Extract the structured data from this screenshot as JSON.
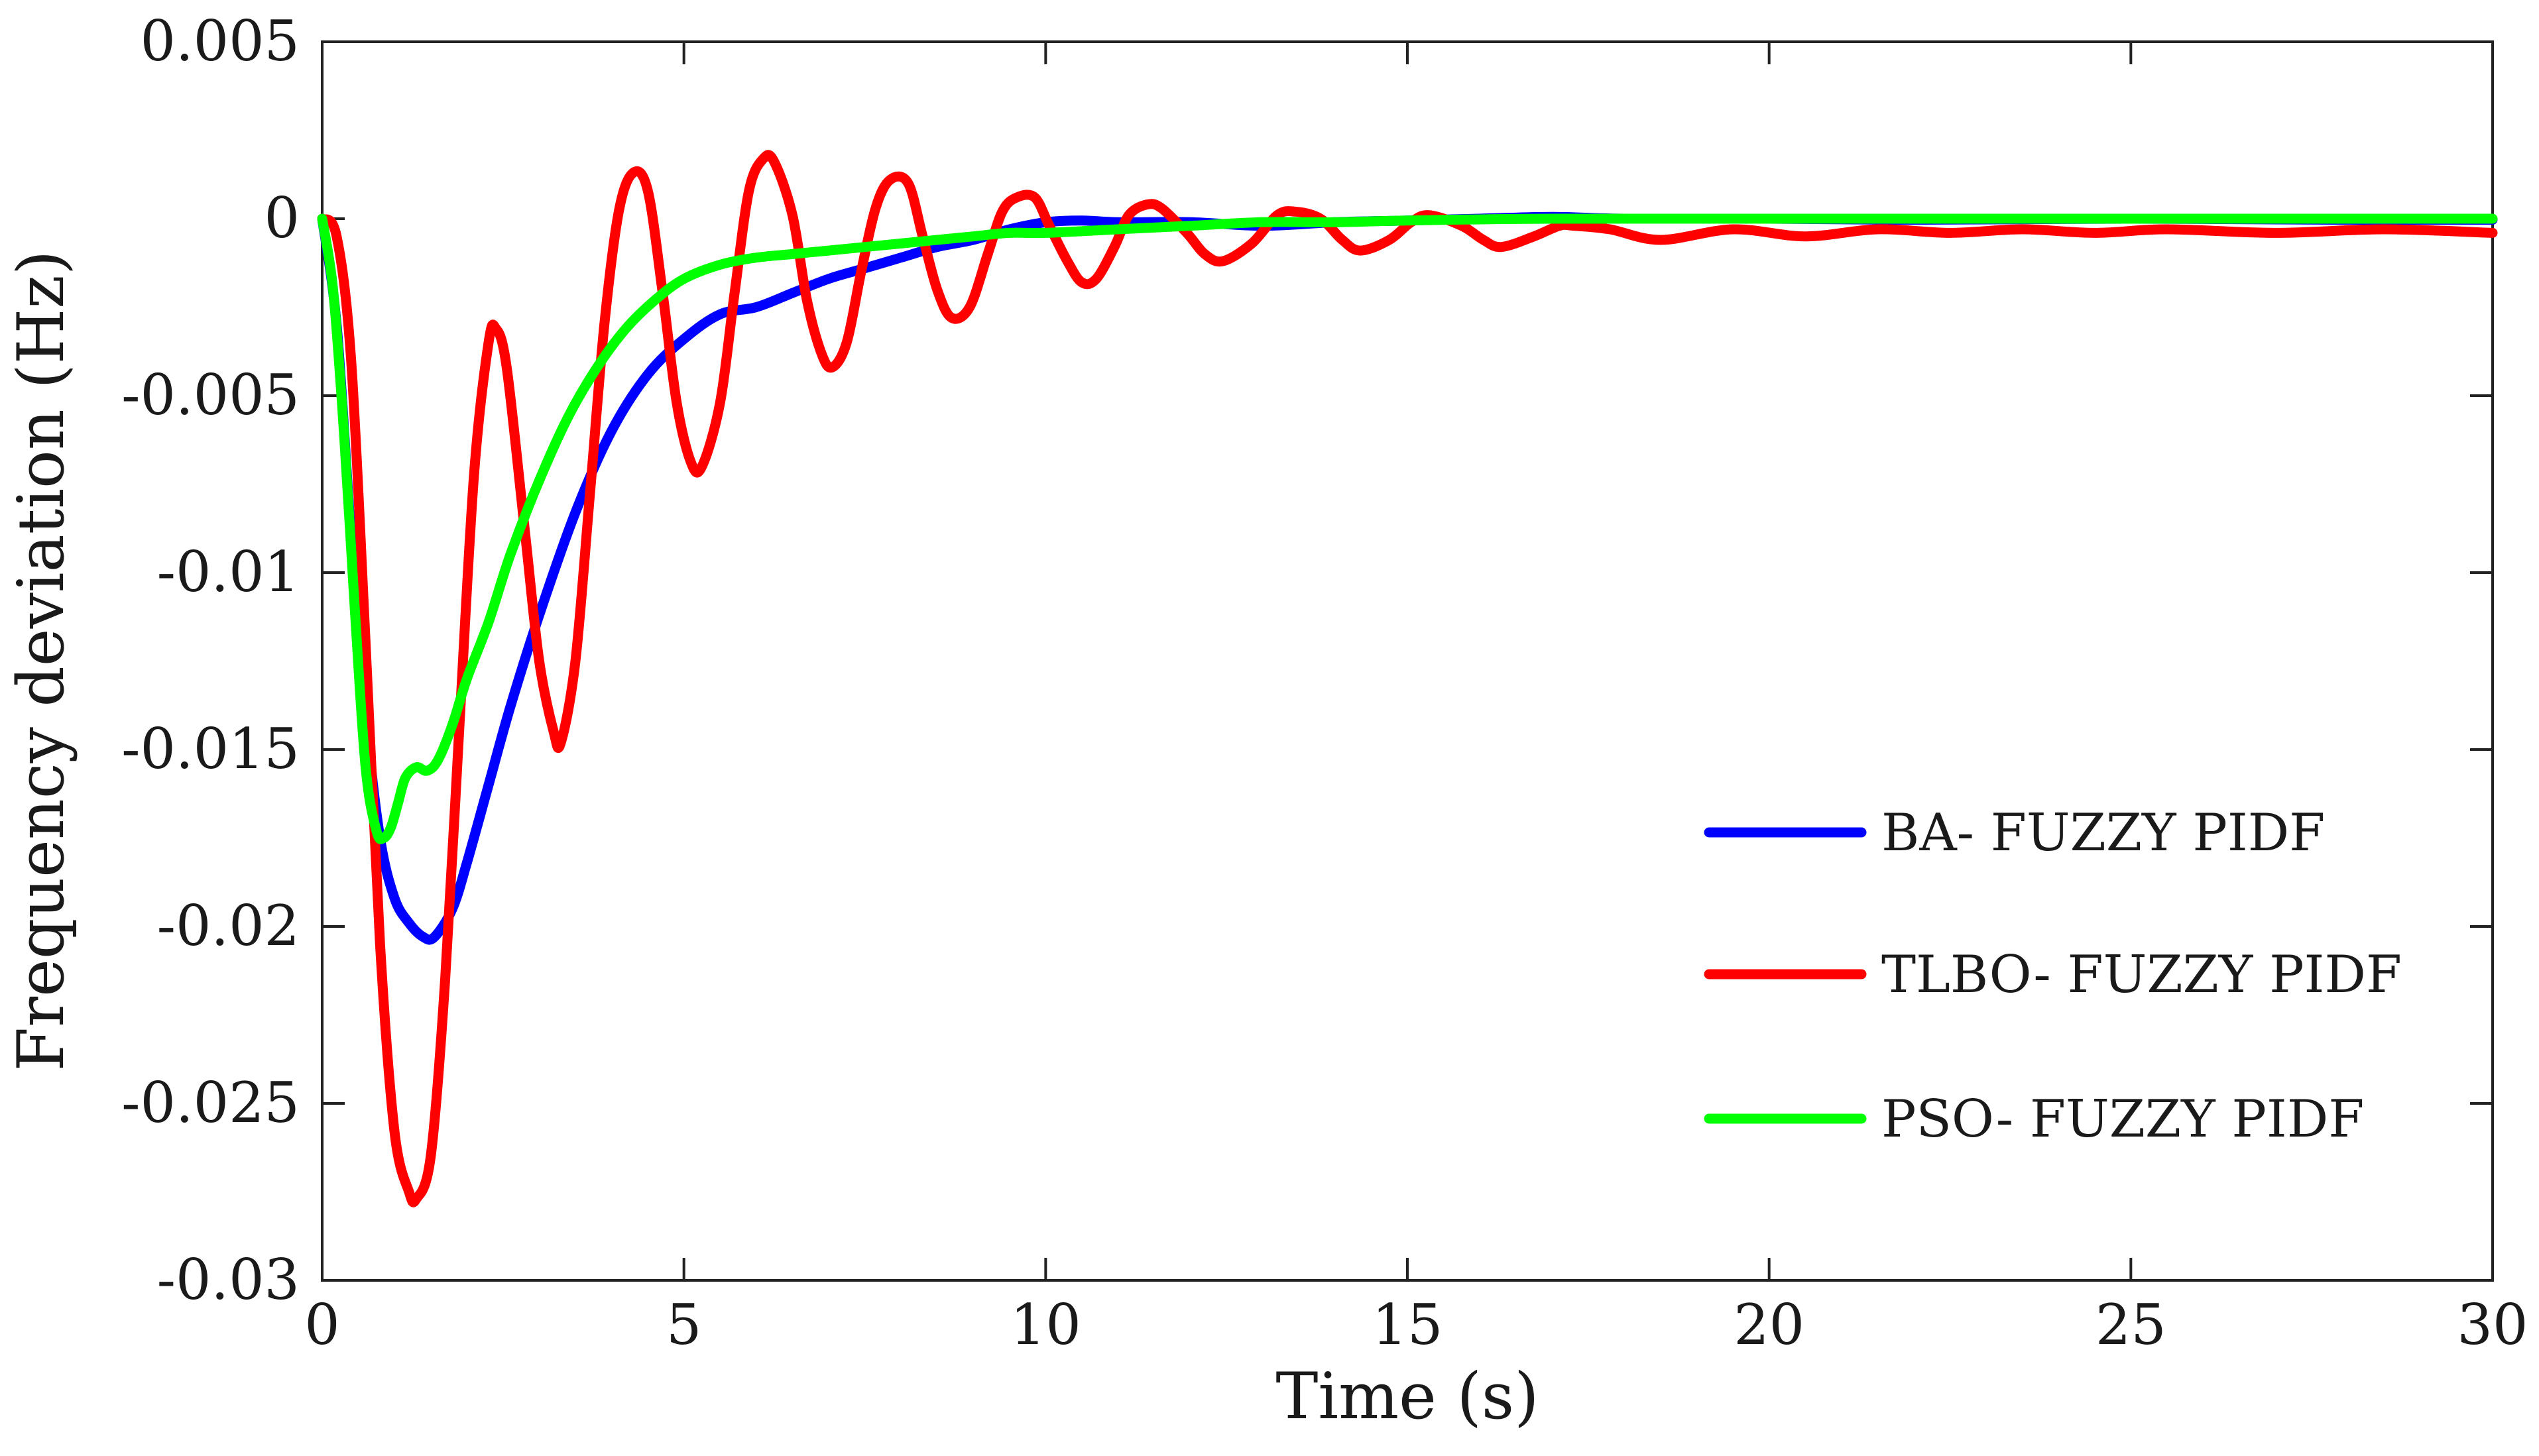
{
  "chart_data": {
    "type": "line",
    "title": "",
    "xlabel": "Time (s)",
    "ylabel": "Frequency deviation (Hz)",
    "xlim": [
      0,
      30
    ],
    "ylim": [
      -0.03,
      0.005
    ],
    "xticks": [
      0,
      5,
      10,
      15,
      20,
      25,
      30
    ],
    "xtick_labels": [
      "0",
      "5",
      "10",
      "15",
      "20",
      "25",
      "30"
    ],
    "yticks": [
      0.005,
      0,
      -0.005,
      -0.01,
      -0.015,
      -0.02,
      -0.025,
      -0.03
    ],
    "ytick_labels": [
      "0.005",
      "0",
      "-0.005",
      "-0.01",
      "-0.015",
      "-0.02",
      "-0.025",
      "-0.03"
    ],
    "grid": false,
    "legend_position": "center-right",
    "series": [
      {
        "name": "BA- FUZZY PIDF",
        "color": "#0000ff",
        "x": [
          0,
          0.2,
          0.4,
          0.6,
          0.8,
          1.0,
          1.2,
          1.4,
          1.55,
          1.8,
          2.0,
          2.3,
          2.6,
          3.0,
          3.5,
          4.0,
          4.5,
          5.0,
          5.5,
          6.0,
          6.5,
          7.0,
          7.5,
          8.0,
          8.5,
          9.0,
          9.5,
          10.0,
          10.5,
          11.0,
          12.0,
          13.0,
          14.0,
          15.0,
          16.0,
          17.0,
          18.0,
          20.0,
          22.0,
          25.0,
          28.0,
          30.0
        ],
        "y": [
          0,
          -0.003,
          -0.009,
          -0.014,
          -0.0175,
          -0.0192,
          -0.0199,
          -0.0203,
          -0.0203,
          -0.0195,
          -0.0182,
          -0.016,
          -0.0138,
          -0.0112,
          -0.0083,
          -0.006,
          -0.0044,
          -0.0034,
          -0.0027,
          -0.0025,
          -0.0021,
          -0.0017,
          -0.0014,
          -0.0011,
          -0.0008,
          -0.0006,
          -0.0003,
          -0.0001,
          -5e-05,
          -0.0001,
          -0.0001,
          -0.0002,
          -0.0001,
          -5e-05,
          0,
          5e-05,
          0,
          0,
          -3e-05,
          0,
          -3e-05,
          -3e-05
        ]
      },
      {
        "name": "TLBO- FUZZY PIDF",
        "color": "#ff0000",
        "x": [
          0,
          0.2,
          0.4,
          0.6,
          0.8,
          1.0,
          1.2,
          1.3,
          1.5,
          1.7,
          1.9,
          2.1,
          2.3,
          2.4,
          2.55,
          2.8,
          3.0,
          3.2,
          3.3,
          3.5,
          3.7,
          3.9,
          4.1,
          4.3,
          4.5,
          4.7,
          4.9,
          5.1,
          5.25,
          5.5,
          5.7,
          5.9,
          6.1,
          6.25,
          6.5,
          6.7,
          6.9,
          7.05,
          7.25,
          7.45,
          7.65,
          7.85,
          8.1,
          8.3,
          8.5,
          8.7,
          8.95,
          9.2,
          9.4,
          9.6,
          9.85,
          10.05,
          10.3,
          10.5,
          10.7,
          10.95,
          11.15,
          11.4,
          11.6,
          11.95,
          12.2,
          12.45,
          12.85,
          13.2,
          13.45,
          13.8,
          14.1,
          14.35,
          14.75,
          15.05,
          15.3,
          15.75,
          16.05,
          16.3,
          16.75,
          17.1,
          17.3,
          17.8,
          18.5,
          19.5,
          20.5,
          21.5,
          22.5,
          23.5,
          24.5,
          25.5,
          27.0,
          28.5,
          30.0
        ],
        "y": [
          0,
          -0.0005,
          -0.004,
          -0.012,
          -0.0205,
          -0.0258,
          -0.0275,
          -0.0277,
          -0.0265,
          -0.0215,
          -0.0142,
          -0.0072,
          -0.0035,
          -0.0031,
          -0.0042,
          -0.0088,
          -0.0125,
          -0.0145,
          -0.0148,
          -0.0125,
          -0.0078,
          -0.003,
          0.0002,
          0.0013,
          0.0008,
          -0.002,
          -0.0052,
          -0.0069,
          -0.007,
          -0.0052,
          -0.0021,
          0.0008,
          0.0017,
          0.0016,
          0.0001,
          -0.0023,
          -0.0038,
          -0.0042,
          -0.0035,
          -0.0015,
          0.0003,
          0.0011,
          0.001,
          -0.0005,
          -0.002,
          -0.0028,
          -0.0025,
          -0.001,
          0.0002,
          0.0006,
          0.0006,
          -0.0002,
          -0.0012,
          -0.0018,
          -0.0017,
          -0.0008,
          0.0001,
          0.0004,
          0.0003,
          -0.0004,
          -0.001,
          -0.0012,
          -0.0007,
          0.0001,
          0.0002,
          0,
          -0.0006,
          -0.0009,
          -0.0006,
          -0.0001,
          0.0001,
          -0.0002,
          -0.0006,
          -0.0008,
          -0.0005,
          -0.0002,
          -0.0002,
          -0.0003,
          -0.0006,
          -0.0003,
          -0.0005,
          -0.0003,
          -0.0004,
          -0.0003,
          -0.0004,
          -0.0003,
          -0.0004,
          -0.0003,
          -0.0004
        ]
      },
      {
        "name": "PSO- FUZZY PIDF",
        "color": "#00ff00",
        "x": [
          0,
          0.15,
          0.3,
          0.45,
          0.6,
          0.75,
          0.85,
          0.95,
          1.05,
          1.15,
          1.3,
          1.45,
          1.6,
          1.8,
          2.0,
          2.3,
          2.6,
          3.0,
          3.4,
          3.8,
          4.2,
          4.6,
          5.0,
          5.5,
          6.0,
          6.5,
          7.0,
          7.5,
          8.0,
          8.5,
          9.0,
          9.5,
          10.0,
          11.0,
          12.0,
          13.0,
          14.0,
          15.0,
          17.0,
          20.0,
          25.0,
          30.0
        ],
        "y": [
          0,
          -0.002,
          -0.006,
          -0.011,
          -0.0155,
          -0.0173,
          -0.0175,
          -0.0172,
          -0.0165,
          -0.0158,
          -0.0155,
          -0.0156,
          -0.0153,
          -0.0143,
          -0.013,
          -0.0114,
          -0.0095,
          -0.0074,
          -0.0056,
          -0.0042,
          -0.0031,
          -0.0023,
          -0.0017,
          -0.0013,
          -0.0011,
          -0.001,
          -0.0009,
          -0.0008,
          -0.0007,
          -0.0006,
          -0.0005,
          -0.0004,
          -0.0004,
          -0.0003,
          -0.0002,
          -0.0001,
          -0.0001,
          -5e-05,
          0,
          0,
          0,
          0
        ]
      }
    ]
  }
}
